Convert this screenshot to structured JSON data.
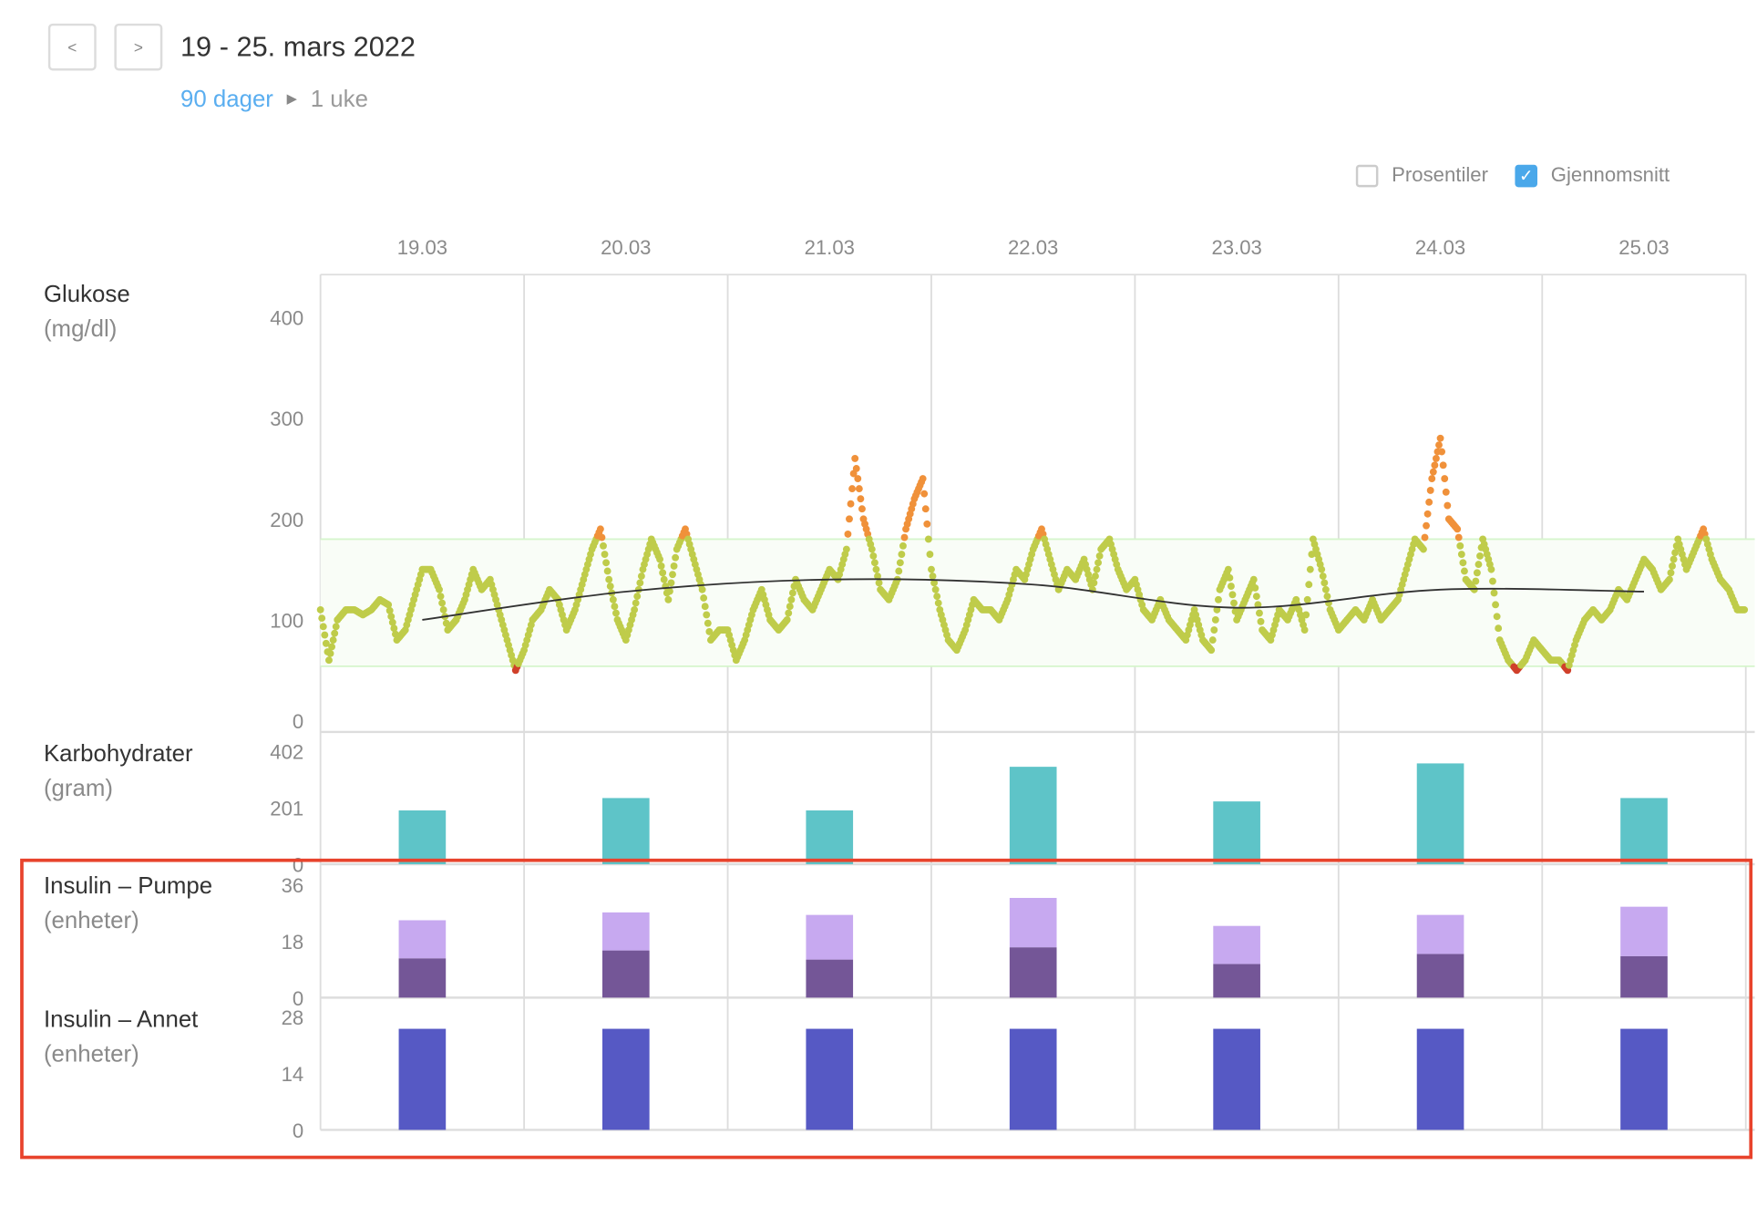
{
  "header": {
    "prev_label": "<",
    "next_label": ">",
    "title": "19 - 25. mars 2022",
    "breadcrumb": {
      "parent": "90 dager",
      "current": "1 uke"
    }
  },
  "options": {
    "percentiles": {
      "label": "Prosentiler",
      "checked": false
    },
    "average": {
      "label": "Gjennomsnitt",
      "checked": true
    }
  },
  "days": [
    "19.03",
    "20.03",
    "21.03",
    "22.03",
    "23.03",
    "24.03",
    "25.03"
  ],
  "colors": {
    "in_range": "#bfcc4a",
    "high": "#f0913a",
    "low": "#d0402a",
    "mean": "#333333",
    "range_band": "#d6f5cc",
    "carbs": "#5ec4c8",
    "bolus": "#c7a9f0",
    "basal": "#745697",
    "other_insulin": "#5659c4",
    "highlight": "#e8432c"
  },
  "sections": {
    "glucose": {
      "title": "Glukose",
      "unit": "(mg/dl)"
    },
    "carbs": {
      "title": "Karbohydrater",
      "unit": "(gram)"
    },
    "pump": {
      "title": "Insulin – Pumpe",
      "unit": "(enheter)"
    },
    "other": {
      "title": "Insulin – Annet",
      "unit": "(enheter)"
    }
  },
  "chart_data": [
    {
      "type": "scatter",
      "name": "glucose",
      "ylim": [
        0,
        400
      ],
      "yticks": [
        "0",
        "100",
        "200",
        "300",
        "400"
      ],
      "target_range": [
        54,
        180
      ],
      "x_unit": "hour",
      "hourly_values": [
        110,
        60,
        100,
        110,
        110,
        105,
        110,
        120,
        115,
        80,
        90,
        120,
        150,
        150,
        130,
        90,
        100,
        120,
        150,
        130,
        140,
        110,
        80,
        50,
        70,
        100,
        110,
        130,
        120,
        90,
        110,
        140,
        170,
        190,
        140,
        100,
        80,
        110,
        150,
        180,
        160,
        120,
        170,
        190,
        160,
        130,
        80,
        90,
        90,
        60,
        80,
        110,
        130,
        100,
        90,
        100,
        140,
        120,
        110,
        130,
        150,
        140,
        170,
        260,
        200,
        170,
        130,
        120,
        140,
        190,
        220,
        240,
        150,
        110,
        80,
        70,
        90,
        120,
        110,
        110,
        100,
        120,
        150,
        140,
        170,
        190,
        160,
        130,
        150,
        140,
        160,
        130,
        170,
        180,
        150,
        130,
        140,
        110,
        100,
        120,
        100,
        90,
        80,
        110,
        80,
        70,
        130,
        150,
        100,
        120,
        140,
        90,
        80,
        110,
        100,
        120,
        90,
        180,
        150,
        110,
        90,
        100,
        110,
        100,
        120,
        100,
        110,
        120,
        150,
        180,
        170,
        240,
        280,
        200,
        190,
        140,
        130,
        180,
        150,
        80,
        60,
        50,
        60,
        80,
        70,
        60,
        60,
        50,
        80,
        100,
        110,
        100,
        110,
        130,
        120,
        140,
        160,
        150,
        130,
        140,
        180,
        150,
        170,
        190,
        160,
        140,
        130,
        110
      ],
      "daily_mean": [
        100,
        128,
        140,
        135,
        112,
        130,
        128
      ]
    },
    {
      "type": "bar",
      "name": "carbs",
      "yticks": [
        "0",
        "201",
        "402"
      ],
      "ylim": [
        0,
        402
      ],
      "values": [
        191,
        235,
        191,
        346,
        223,
        358,
        235
      ]
    },
    {
      "type": "stacked-bar",
      "name": "pump",
      "yticks": [
        "0",
        "18",
        "36"
      ],
      "ylim": [
        0,
        36
      ],
      "basal": [
        12.5,
        15.0,
        12.1,
        16.0,
        10.7,
        13.9,
        13.2
      ],
      "bolus": [
        12.1,
        12.1,
        14.2,
        15.7,
        12.1,
        12.4,
        15.7
      ]
    },
    {
      "type": "bar",
      "name": "other",
      "yticks": [
        "0",
        "14",
        "28"
      ],
      "ylim": [
        0,
        28
      ],
      "values": [
        25,
        25,
        25,
        25,
        25,
        25,
        25
      ]
    }
  ]
}
